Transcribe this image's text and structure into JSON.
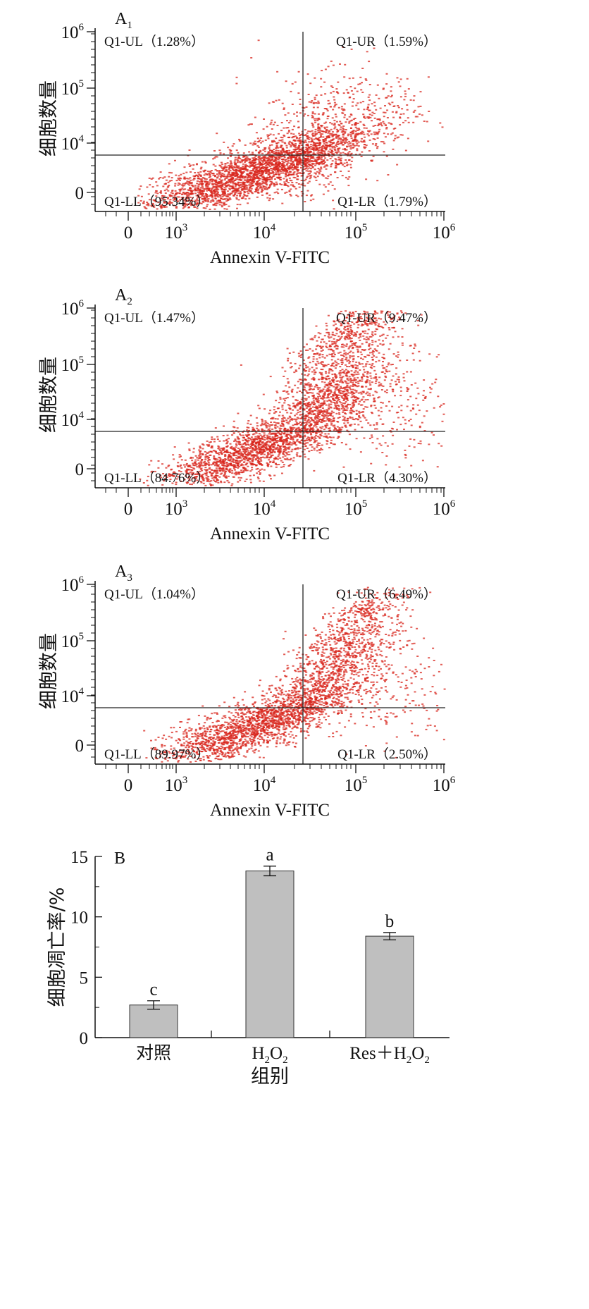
{
  "flow_panels": [
    {
      "panel_label": "A",
      "panel_sub": "1",
      "xlabel": "Annexin V-FITC",
      "ylabel": "细胞数量",
      "q_ul": "Q1-UL（1.28%）",
      "q_ur": "Q1-UR（1.59%）",
      "q_ll": "Q1-LL（95.34%）",
      "q_lr": "Q1-LR（1.79%）"
    },
    {
      "panel_label": "A",
      "panel_sub": "2",
      "xlabel": "Annexin V-FITC",
      "ylabel": "细胞数量",
      "q_ul": "Q1-UL（1.47%）",
      "q_ur": "Q1-UR（9.47%）",
      "q_ll": "Q1-LL（84.76%）",
      "q_lr": "Q1-LR（4.30%）"
    },
    {
      "panel_label": "A",
      "panel_sub": "3",
      "xlabel": "Annexin V-FITC",
      "ylabel": "细胞数量",
      "q_ul": "Q1-UL（1.04%）",
      "q_ur": "Q1-UR（6.49%）",
      "q_ll": "Q1-LL（89.97%）",
      "q_lr": "Q1-LR（2.50%）"
    }
  ],
  "flow_axis": {
    "x_ticks": [
      {
        "base": "0",
        "exp": ""
      },
      {
        "base": "10",
        "exp": "3"
      },
      {
        "base": "10",
        "exp": "4"
      },
      {
        "base": "10",
        "exp": "5"
      },
      {
        "base": "10",
        "exp": "6"
      }
    ],
    "y_ticks": [
      {
        "base": "10",
        "exp": "6"
      },
      {
        "base": "10",
        "exp": "5"
      },
      {
        "base": "10",
        "exp": "4"
      },
      {
        "base": "0",
        "exp": ""
      }
    ]
  },
  "chart_data": {
    "type": "bar",
    "panel_label": "B",
    "title": "",
    "categories": [
      "对照",
      "H2O2",
      "Res＋H2O2"
    ],
    "category_display": [
      {
        "parts": [
          "对照"
        ]
      },
      {
        "parts": [
          "H",
          "2",
          "O",
          "2"
        ]
      },
      {
        "parts": [
          "Res＋H",
          "2",
          "O",
          "2"
        ]
      }
    ],
    "values": [
      2.7,
      13.8,
      8.4
    ],
    "errors": [
      0.35,
      0.4,
      0.3
    ],
    "significance": [
      "c",
      "a",
      "b"
    ],
    "xlabel": "组别",
    "ylabel": "细胞凋亡率/%",
    "ylim": [
      0,
      15
    ],
    "y_ticks": [
      "0",
      "5",
      "10",
      "15"
    ],
    "bar_color": "#bfbfbf"
  },
  "colors": {
    "dots": "#d8251c",
    "axis": "#111111"
  }
}
